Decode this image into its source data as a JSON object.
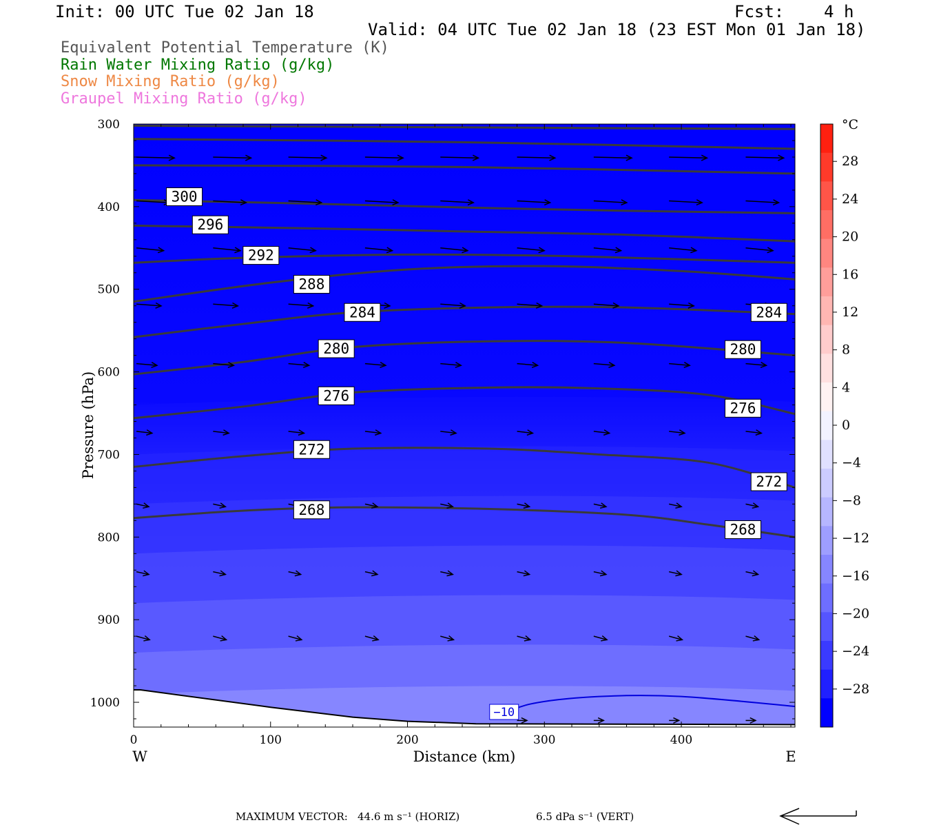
{
  "header": {
    "init": "Init: 00 UTC Tue 02 Jan 18",
    "fcst": "Fcst:    4 h",
    "valid": "Valid: 04 UTC Tue 02 Jan 18 (23 EST Mon 01 Jan 18)"
  },
  "legend": [
    {
      "text": "Equivalent Potential Temperature (K)",
      "color": "#555555"
    },
    {
      "text": "Rain Water Mixing Ratio (g/kg)",
      "color": "#007700"
    },
    {
      "text": "Snow Mixing Ratio (g/kg)",
      "color": "#ee8844"
    },
    {
      "text": "Graupel Mixing Ratio (g/kg)",
      "color": "#ee77dd"
    }
  ],
  "chart_data": {
    "type": "cross-section",
    "xlabel": "Distance (km)",
    "ylabel": "Pressure (hPa)",
    "x_ticks": [
      0,
      100,
      200,
      300,
      400
    ],
    "y_ticks": [
      300,
      400,
      500,
      600,
      700,
      800,
      900,
      1000
    ],
    "xlim": [
      0,
      483
    ],
    "ylim": [
      300,
      1030
    ],
    "x_end_labels": {
      "left": "W",
      "right": "E"
    },
    "colorbar": {
      "unit": "°C",
      "tick_labels": [
        "28",
        "24",
        "20",
        "16",
        "12",
        "8",
        "4",
        "0",
        "−4",
        "−8",
        "−12",
        "−16",
        "−20",
        "−24",
        "−28"
      ],
      "colors": [
        "#ff2010",
        "#ff3a2a",
        "#ff5548",
        "#ff6e64",
        "#ff8680",
        "#ff9e9a",
        "#ffb6b2",
        "#ffcccc",
        "#ffe0e0",
        "#fff2f2",
        "#f2f2ff",
        "#e0e0ff",
        "#ccccff",
        "#b6b6ff",
        "#9e9eff",
        "#8686ff",
        "#6e6eff",
        "#5555ff",
        "#3a3aff",
        "#2020ff",
        "#0000ff"
      ]
    },
    "theta_e_contours": [
      {
        "value": 300,
        "points": [
          [
            0,
            392
          ],
          [
            120,
            396
          ],
          [
            240,
            401
          ],
          [
            360,
            405
          ],
          [
            483,
            408
          ]
        ]
      },
      {
        "value": 296,
        "points": [
          [
            0,
            423
          ],
          [
            120,
            426
          ],
          [
            240,
            430
          ],
          [
            360,
            434
          ],
          [
            483,
            442
          ]
        ]
      },
      {
        "value": 292,
        "points": [
          [
            0,
            468
          ],
          [
            80,
            462
          ],
          [
            200,
            458
          ],
          [
            320,
            460
          ],
          [
            483,
            468
          ]
        ]
      },
      {
        "value": 288,
        "points": [
          [
            0,
            515
          ],
          [
            100,
            492
          ],
          [
            200,
            476
          ],
          [
            300,
            472
          ],
          [
            400,
            478
          ],
          [
            483,
            488
          ]
        ]
      },
      {
        "value": 284,
        "points": [
          [
            0,
            558
          ],
          [
            80,
            542
          ],
          [
            160,
            528
          ],
          [
            260,
            522
          ],
          [
            360,
            522
          ],
          [
            483,
            530
          ]
        ]
      },
      {
        "value": 280,
        "points": [
          [
            0,
            603
          ],
          [
            80,
            588
          ],
          [
            160,
            570
          ],
          [
            260,
            563
          ],
          [
            360,
            565
          ],
          [
            483,
            580
          ]
        ]
      },
      {
        "value": 276,
        "points": [
          [
            0,
            656
          ],
          [
            80,
            642
          ],
          [
            160,
            625
          ],
          [
            260,
            619
          ],
          [
            340,
            620
          ],
          [
            420,
            628
          ],
          [
            483,
            651
          ]
        ]
      },
      {
        "value": 272,
        "points": [
          [
            0,
            715
          ],
          [
            80,
            702
          ],
          [
            160,
            693
          ],
          [
            260,
            693
          ],
          [
            340,
            700
          ],
          [
            420,
            710
          ],
          [
            483,
            740
          ]
        ]
      },
      {
        "value": 268,
        "points": [
          [
            0,
            777
          ],
          [
            80,
            768
          ],
          [
            160,
            764
          ],
          [
            260,
            766
          ],
          [
            360,
            773
          ],
          [
            420,
            785
          ],
          [
            483,
            800
          ]
        ]
      }
    ],
    "contour_labels": [
      {
        "value": "300",
        "x": 37,
        "p": 388
      },
      {
        "value": "296",
        "x": 56,
        "p": 422
      },
      {
        "value": "292",
        "x": 93,
        "p": 459
      },
      {
        "value": "288",
        "x": 130,
        "p": 494
      },
      {
        "value": "284",
        "x": 167,
        "p": 528
      },
      {
        "value": "284",
        "x": 464,
        "p": 528
      },
      {
        "value": "280",
        "x": 148,
        "p": 572
      },
      {
        "value": "280",
        "x": 445,
        "p": 573
      },
      {
        "value": "276",
        "x": 148,
        "p": 629
      },
      {
        "value": "276",
        "x": 445,
        "p": 644
      },
      {
        "value": "272",
        "x": 130,
        "p": 694
      },
      {
        "value": "272",
        "x": 464,
        "p": 733
      },
      {
        "value": "268",
        "x": 130,
        "p": 767
      },
      {
        "value": "268",
        "x": 445,
        "p": 791
      }
    ],
    "isotherm": {
      "label": "−10",
      "color": "#0000dd",
      "points": [
        [
          263,
          1020
        ],
        [
          290,
          1002
        ],
        [
          340,
          993
        ],
        [
          400,
          993
        ],
        [
          483,
          1005
        ]
      ]
    },
    "terrain": [
      [
        0,
        985
      ],
      [
        5,
        985
      ],
      [
        100,
        1006
      ],
      [
        160,
        1018
      ],
      [
        200,
        1023
      ],
      [
        250,
        1026
      ],
      [
        483,
        1027
      ]
    ],
    "vectors": [
      {
        "p": 340,
        "x": [
          0,
          56,
          111,
          167,
          222,
          278,
          334,
          389,
          445
        ],
        "u": 46,
        "v": 1
      },
      {
        "p": 393,
        "x": [
          0,
          56,
          111,
          167,
          222,
          278,
          334,
          389,
          445
        ],
        "u": 40,
        "v": 2
      },
      {
        "p": 450,
        "x": [
          0,
          56,
          111,
          167,
          222,
          278,
          334,
          389,
          445
        ],
        "u": 33,
        "v": 3
      },
      {
        "p": 518,
        "x": [
          0,
          56,
          111,
          167,
          222,
          278,
          334,
          389,
          445
        ],
        "u": 30,
        "v": 2
      },
      {
        "p": 590,
        "x": [
          0,
          56,
          111,
          167,
          222,
          278,
          334,
          389,
          445
        ],
        "u": 25,
        "v": 2
      },
      {
        "p": 672,
        "x": [
          0,
          56,
          111,
          167,
          222,
          278,
          334,
          389,
          445
        ],
        "u": 19,
        "v": 2
      },
      {
        "p": 760,
        "x": [
          0,
          56,
          111,
          167,
          222,
          278,
          334,
          389,
          445
        ],
        "u": 15,
        "v": 3
      },
      {
        "p": 842,
        "x": [
          0,
          56,
          111,
          167,
          222,
          278,
          334,
          389,
          445
        ],
        "u": 15,
        "v": 3
      },
      {
        "p": 920,
        "x": [
          0,
          56,
          111,
          167,
          222,
          278,
          334,
          389,
          445
        ],
        "u": 16,
        "v": 4
      },
      {
        "p": 1022,
        "x": [
          278,
          334,
          389,
          445
        ],
        "u": 12,
        "v": 0
      }
    ]
  },
  "footer": {
    "max_vector_label": "MAXIMUM VECTOR:",
    "horiz": "44.6 m s⁻¹ (HORIZ)",
    "vert": "6.5 dPa s⁻¹ (VERT)"
  }
}
